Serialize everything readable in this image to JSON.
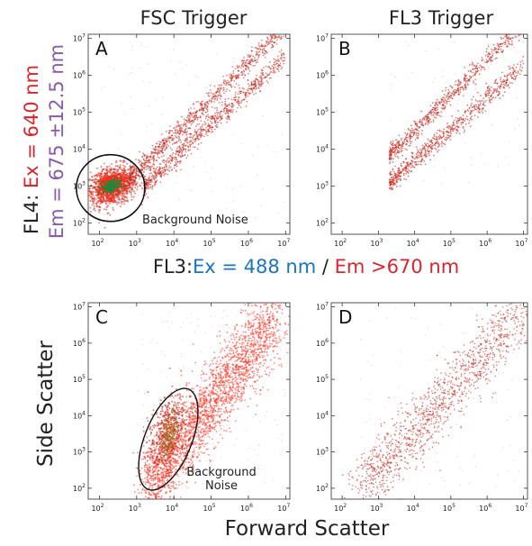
{
  "figure": {
    "col_titles": [
      "FSC Trigger",
      "FL3 Trigger"
    ],
    "y_axis_title_top": {
      "prefix": "FL4: ",
      "ex": "Ex = 640 nm",
      "em": "Em = 675 ±12.5 nm"
    },
    "x_axis_title_top": {
      "prefix": "FL3:",
      "ex": "Ex = 488 nm",
      "sep": " / ",
      "em": "Em >670 nm"
    },
    "y_axis_title_bottom": "Side Scatter",
    "x_axis_title_bottom": "Forward Scatter",
    "colors": {
      "ex": "#1b75bb",
      "em_red": "#d7262e",
      "em_purple": "#8a5aa8",
      "points": "#c8281e",
      "points_dense": "#ff2a1a",
      "core": "#1e8a3a"
    }
  },
  "chart_data": [
    {
      "panel": "A",
      "type": "scatter",
      "scale": "log",
      "xlim": [
        50,
        13000000
      ],
      "ylim": [
        50,
        13000000
      ],
      "x_ticks": [
        "10",
        "10",
        "10",
        "10",
        "10",
        "10"
      ],
      "x_tick_exp": [
        "2",
        "3",
        "4",
        "5",
        "6",
        "7"
      ],
      "y_ticks": [
        "10",
        "10",
        "10",
        "10",
        "10",
        "10"
      ],
      "y_tick_exp": [
        "2",
        "3",
        "4",
        "5",
        "6",
        "7"
      ],
      "annotation": "Background Noise",
      "populations": [
        {
          "name": "noise cluster",
          "x_center": 200,
          "y_center": 1000
        },
        {
          "name": "upper diagonal",
          "x_range": [
            1000,
            10000000
          ],
          "y_range": [
            1500,
            10000000
          ]
        },
        {
          "name": "lower diagonal",
          "x_range": [
            1500,
            10000000
          ],
          "y_range": [
            1000,
            7000000
          ]
        }
      ]
    },
    {
      "panel": "B",
      "type": "scatter",
      "scale": "log",
      "xlim": [
        50,
        13000000
      ],
      "ylim": [
        50,
        13000000
      ],
      "x_ticks": [
        "10",
        "10",
        "10",
        "10",
        "10",
        "10"
      ],
      "x_tick_exp": [
        "2",
        "3",
        "4",
        "5",
        "6",
        "7"
      ],
      "y_ticks": [
        "10",
        "10",
        "10",
        "10",
        "10",
        "10"
      ],
      "y_tick_exp": [
        "2",
        "3",
        "4",
        "5",
        "6",
        "7"
      ],
      "populations": [
        {
          "name": "upper diagonal",
          "x_range": [
            2000,
            10000000
          ],
          "y_range": [
            5000,
            10000000
          ]
        },
        {
          "name": "lower diagonal",
          "x_range": [
            2000,
            10000000
          ],
          "y_range": [
            1000,
            5000000
          ]
        }
      ]
    },
    {
      "panel": "C",
      "type": "scatter",
      "scale": "log",
      "xlim": [
        50,
        13000000
      ],
      "ylim": [
        50,
        13000000
      ],
      "x_ticks": [
        "10",
        "10",
        "10",
        "10",
        "10",
        "10"
      ],
      "x_tick_exp": [
        "2",
        "3",
        "4",
        "5",
        "6",
        "7"
      ],
      "y_ticks": [
        "10",
        "10",
        "10",
        "10",
        "10",
        "10"
      ],
      "y_tick_exp": [
        "2",
        "3",
        "4",
        "5",
        "6",
        "7"
      ],
      "annotation": "Background\nNoise",
      "populations": [
        {
          "name": "main population",
          "x_range": [
            2000,
            10000000
          ],
          "y_range": [
            100,
            10000000
          ]
        },
        {
          "name": "noise",
          "x_center": 8000,
          "y_center": 3000
        }
      ]
    },
    {
      "panel": "D",
      "type": "scatter",
      "scale": "log",
      "xlim": [
        50,
        13000000
      ],
      "ylim": [
        50,
        13000000
      ],
      "x_ticks": [
        "10",
        "10",
        "10",
        "10",
        "10",
        "10"
      ],
      "x_tick_exp": [
        "2",
        "3",
        "4",
        "5",
        "6",
        "7"
      ],
      "y_ticks": [
        "10",
        "10",
        "10",
        "10",
        "10",
        "10"
      ],
      "y_tick_exp": [
        "2",
        "3",
        "4",
        "5",
        "6",
        "7"
      ],
      "populations": [
        {
          "name": "diagonal population",
          "x_range": [
            400,
            10000000
          ],
          "y_range": [
            100,
            10000000
          ]
        }
      ]
    }
  ]
}
